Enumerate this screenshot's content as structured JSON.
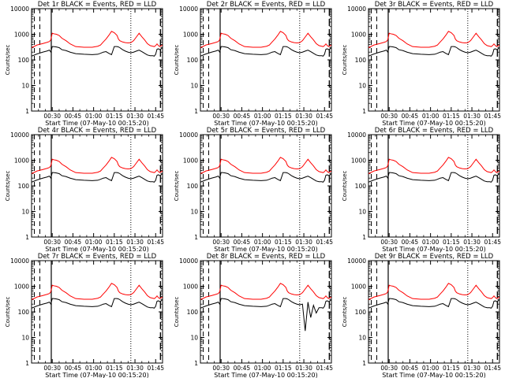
{
  "figure": {
    "xlabel": "Start Time (07-May-10 00:15:20)",
    "ylabel": "Counts/sec"
  },
  "chart_data": [
    {
      "type": "line",
      "title": "Det 1r  BLACK = Events, RED = LLD",
      "profile": "normal"
    },
    {
      "type": "line",
      "title": "Det 2r  BLACK = Events, RED = LLD",
      "profile": "normal"
    },
    {
      "type": "line",
      "title": "Det 3r  BLACK = Events, RED = LLD",
      "profile": "normal"
    },
    {
      "type": "line",
      "title": "Det 4r  BLACK = Events, RED = LLD",
      "profile": "normal"
    },
    {
      "type": "line",
      "title": "Det 5r  BLACK = Events, RED = LLD",
      "profile": "normal"
    },
    {
      "type": "line",
      "title": "Det 6r  BLACK = Events, RED = LLD",
      "profile": "normal"
    },
    {
      "type": "line",
      "title": "Det 7r  BLACK = Events, RED = LLD",
      "profile": "normal"
    },
    {
      "type": "line",
      "title": "Det 8r  BLACK = Events, RED = LLD",
      "profile": "dips"
    },
    {
      "type": "line",
      "title": "Det 9r  BLACK = Events, RED = LLD",
      "profile": "normal"
    }
  ],
  "axes": {
    "xlim_minutes_after_0015": [
      0,
      95
    ],
    "x_ticks": [
      {
        "label": "00:30",
        "t": 15
      },
      {
        "label": "00:45",
        "t": 30
      },
      {
        "label": "01:00",
        "t": 45
      },
      {
        "label": "01:15",
        "t": 60
      },
      {
        "label": "01:30",
        "t": 75
      },
      {
        "label": "01:45",
        "t": 90
      }
    ],
    "ylim": [
      1,
      10000
    ],
    "yscale": "log",
    "y_ticks": [
      {
        "label": "1",
        "v": 1
      },
      {
        "label": "10",
        "v": 10
      },
      {
        "label": "100",
        "v": 100
      },
      {
        "label": "1000",
        "v": 1000
      },
      {
        "label": "10000",
        "v": 10000
      }
    ]
  },
  "series_common": {
    "x": [
      0,
      4,
      8,
      11,
      13,
      14,
      15,
      16,
      18,
      20,
      22,
      25,
      28,
      32,
      38,
      44,
      48,
      50,
      52,
      54,
      56,
      58,
      60,
      62,
      63,
      64,
      66,
      68,
      70,
      72,
      74,
      76,
      78,
      80,
      82,
      84,
      86,
      88,
      89,
      90,
      91,
      92,
      93,
      94,
      95
    ],
    "lld": [
      300,
      380,
      430,
      480,
      520,
      620,
      1100,
      1050,
      1000,
      900,
      700,
      560,
      420,
      330,
      310,
      310,
      340,
      380,
      500,
      650,
      900,
      1300,
      1150,
      900,
      650,
      560,
      500,
      470,
      460,
      470,
      560,
      780,
      1100,
      800,
      600,
      430,
      360,
      340,
      330,
      360,
      420,
      360,
      330,
      350,
      380
    ],
    "events": [
      140,
      170,
      200,
      220,
      240,
      200,
      330,
      330,
      320,
      300,
      250,
      230,
      200,
      175,
      165,
      160,
      165,
      180,
      200,
      210,
      180,
      160,
      330,
      330,
      320,
      300,
      250,
      220,
      200,
      190,
      200,
      220,
      240,
      210,
      180,
      155,
      145,
      145,
      140,
      165,
      260,
      270,
      250,
      270,
      300
    ],
    "dip_events": [
      140,
      170,
      200,
      220,
      240,
      200,
      330,
      330,
      320,
      300,
      250,
      230,
      200,
      175,
      165,
      160,
      165,
      180,
      200,
      210,
      180,
      160,
      330,
      330,
      320,
      300,
      250,
      220,
      200,
      190,
      200,
      18,
      240,
      60,
      180,
      90,
      145,
      145,
      140,
      165,
      260,
      270,
      250,
      270,
      300
    ]
  },
  "markers": {
    "dashed_t": [
      2,
      6
    ],
    "solid_t": [
      14.3
    ],
    "dotted_t": [
      72
    ],
    "longdash_t": [
      93.5
    ]
  },
  "colors": {
    "events": "#000000",
    "lld": "#ff0000",
    "axis": "#000000"
  }
}
